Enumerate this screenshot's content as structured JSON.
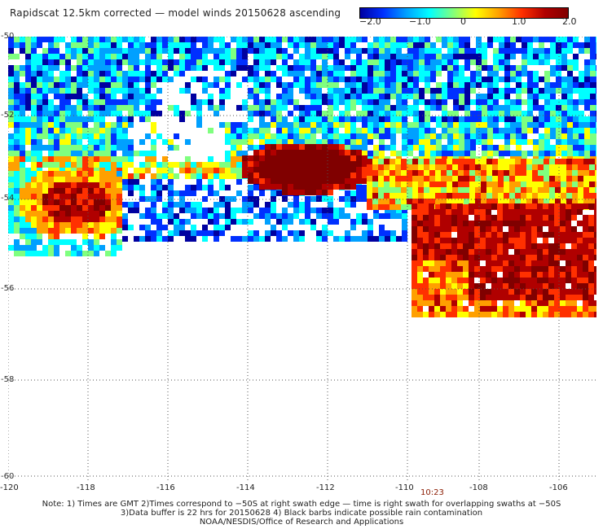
{
  "title": "Rapidscat 12.5km corrected — model winds 20150628 ascending",
  "colorbar": {
    "ticks": [
      "−2.0",
      "−1.0",
      "0",
      "1.0",
      "2.0"
    ],
    "colors": [
      "#0000a0",
      "#0030ff",
      "#00a0ff",
      "#00ffff",
      "#7fff7f",
      "#ffff00",
      "#ffa000",
      "#ff3000",
      "#b00000",
      "#800000"
    ]
  },
  "map": {
    "lat_labels": [
      "-50",
      "-52",
      "-54",
      "-56",
      "-58",
      "-60"
    ],
    "lon_labels": [
      "-120",
      "-118",
      "-116",
      "-114",
      "-112",
      "-110",
      "-108",
      "-106"
    ],
    "time_label": "10:23"
  },
  "notes": {
    "line1": "Note: 1) Times are GMT 2)Times correspond to −50S at right swath edge — time is right swath for overlapping swaths at −50S",
    "line2": "3)Data buffer is 22 hrs for 20150628 4) Black barbs indicate possible rain contamination",
    "line3": "NOAA/NESDIS/Office of Research and Applications"
  }
}
